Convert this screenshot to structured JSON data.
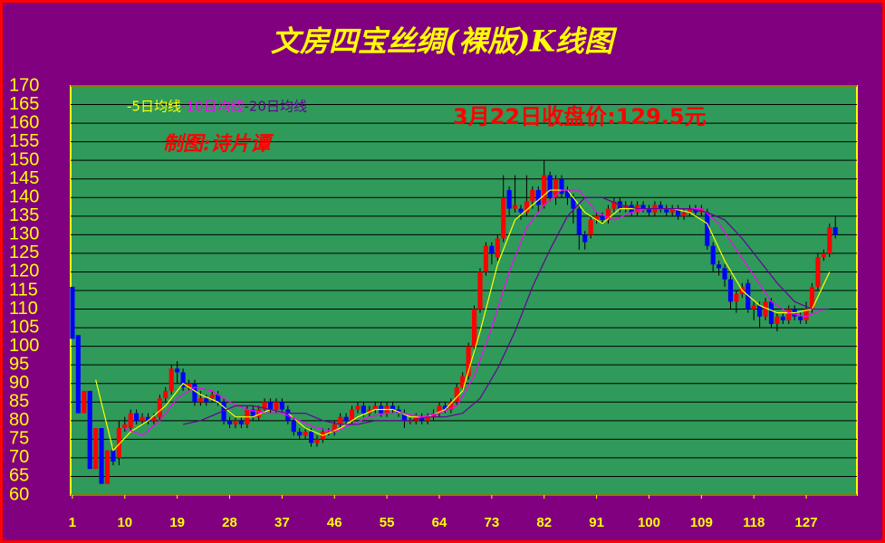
{
  "chart_data": {
    "type": "candlestick",
    "title": "文房四宝丝绸(裸版)K线图",
    "annotation": "3月22日收盘价:129.5元",
    "credit": "制图:诗片谭",
    "ylim": [
      60,
      170
    ],
    "yticks": [
      60,
      65,
      70,
      75,
      80,
      85,
      90,
      95,
      100,
      105,
      110,
      115,
      120,
      125,
      130,
      135,
      140,
      145,
      150,
      155,
      160,
      165,
      170
    ],
    "xlim": [
      0.7,
      135.7
    ],
    "xticks": [
      1,
      10,
      19,
      28,
      37,
      46,
      55,
      64,
      73,
      82,
      91,
      100,
      109,
      118,
      127
    ],
    "grid": true,
    "up_color": "#ff0000",
    "down_color": "#0000ff",
    "open": [
      116,
      103,
      82,
      88,
      67,
      78,
      63,
      72,
      70,
      78,
      78,
      82,
      80,
      81,
      80,
      81,
      86,
      88,
      94,
      93,
      89,
      90,
      85,
      86,
      86,
      87,
      85,
      80,
      79,
      80,
      79,
      83,
      81,
      83,
      85,
      83,
      85,
      83,
      80,
      77,
      76,
      77,
      74,
      75,
      77,
      77,
      79,
      81,
      80,
      83,
      84,
      82,
      83,
      84,
      82,
      84,
      83,
      82,
      80,
      80,
      81,
      80,
      81,
      82,
      84,
      83,
      85,
      89,
      92,
      100,
      110,
      120,
      127,
      124,
      129,
      142,
      137,
      137,
      136,
      139,
      142,
      138,
      146,
      140,
      145,
      142,
      140,
      137,
      130,
      130,
      134,
      135,
      134,
      137,
      139,
      137,
      138,
      136,
      138,
      137,
      136,
      138,
      137,
      136,
      137,
      135,
      136,
      137,
      136,
      136,
      127,
      122,
      121,
      118,
      112,
      114,
      117,
      110,
      111,
      108,
      112,
      106,
      108,
      107,
      110,
      108,
      107,
      110,
      116,
      124,
      125,
      132
    ],
    "high": [
      116,
      103,
      88,
      88,
      78,
      78,
      72,
      73,
      80,
      81,
      83,
      83,
      82,
      82,
      82,
      87,
      89,
      95,
      96,
      94,
      91,
      91,
      88,
      87,
      88,
      88,
      86,
      81,
      81,
      81,
      84,
      84,
      84,
      86,
      86,
      86,
      86,
      84,
      81,
      78,
      78,
      78,
      76,
      78,
      78,
      80,
      82,
      82,
      84,
      85,
      85,
      84,
      85,
      85,
      85,
      85,
      84,
      83,
      81,
      82,
      82,
      82,
      83,
      85,
      85,
      86,
      90,
      93,
      101,
      111,
      121,
      128,
      128,
      130,
      146,
      143,
      146,
      138,
      146,
      143,
      143,
      150,
      147,
      146,
      146,
      143,
      141,
      138,
      131,
      135,
      136,
      136,
      138,
      140,
      140,
      139,
      139,
      139,
      139,
      138,
      139,
      139,
      138,
      138,
      138,
      137,
      138,
      138,
      138,
      137,
      128,
      123,
      122,
      119,
      115,
      117,
      118,
      112,
      112,
      113,
      113,
      109,
      109,
      111,
      111,
      109,
      112,
      117,
      125,
      126,
      133,
      135
    ],
    "low": [
      102,
      82,
      82,
      67,
      67,
      63,
      63,
      68,
      68,
      77,
      77,
      79,
      79,
      79,
      79,
      80,
      85,
      87,
      90,
      88,
      88,
      84,
      84,
      84,
      85,
      84,
      79,
      78,
      78,
      78,
      78,
      80,
      80,
      82,
      82,
      82,
      82,
      79,
      76,
      75,
      75,
      73,
      73,
      74,
      76,
      76,
      78,
      79,
      79,
      82,
      81,
      81,
      82,
      81,
      81,
      82,
      81,
      78,
      79,
      79,
      79,
      79,
      80,
      81,
      82,
      82,
      84,
      88,
      91,
      99,
      109,
      119,
      122,
      123,
      128,
      135,
      136,
      134,
      135,
      137,
      136,
      137,
      139,
      138,
      140,
      138,
      133,
      126,
      126,
      129,
      133,
      133,
      133,
      136,
      136,
      136,
      135,
      135,
      136,
      135,
      135,
      136,
      135,
      135,
      134,
      134,
      135,
      135,
      135,
      126,
      120,
      119,
      116,
      110,
      109,
      113,
      109,
      107,
      105,
      107,
      105,
      104,
      106,
      106,
      107,
      106,
      106,
      109,
      115,
      123,
      124,
      129
    ],
    "close": [
      102,
      82,
      88,
      67,
      78,
      63,
      72,
      69,
      78,
      79,
      82,
      80,
      81,
      80,
      81,
      86,
      88,
      94,
      93,
      89,
      90,
      85,
      86,
      85,
      87,
      85,
      80,
      79,
      80,
      79,
      83,
      81,
      83,
      85,
      83,
      85,
      83,
      80,
      77,
      76,
      77,
      74,
      75,
      77,
      77,
      79,
      81,
      80,
      83,
      84,
      82,
      83,
      84,
      82,
      84,
      83,
      82,
      80,
      80,
      81,
      80,
      81,
      82,
      84,
      83,
      85,
      89,
      92,
      100,
      110,
      120,
      127,
      125,
      129,
      140,
      137,
      138,
      136,
      139,
      142,
      138,
      146,
      140,
      145,
      141,
      140,
      137,
      130,
      128,
      134,
      135,
      134,
      137,
      139,
      137,
      138,
      136,
      138,
      137,
      136,
      138,
      137,
      136,
      137,
      135,
      136,
      137,
      136,
      137,
      127,
      122,
      121,
      118,
      112,
      114,
      116,
      110,
      111,
      108,
      112,
      106,
      108,
      107,
      110,
      108,
      107,
      110,
      116,
      124,
      125,
      132,
      130
    ],
    "series": [
      {
        "name": "-5日均线",
        "color": "#ffff00",
        "x": [
          5,
          8,
          11,
          14,
          17,
          20,
          23,
          26,
          29,
          32,
          35,
          38,
          41,
          44,
          47,
          50,
          53,
          56,
          59,
          62,
          65,
          68,
          71,
          74,
          77,
          80,
          83,
          86,
          89,
          92,
          95,
          98,
          101,
          104,
          107,
          110,
          113,
          116,
          119,
          122,
          125,
          128,
          131
        ],
        "values": [
          91,
          72,
          77,
          80,
          84,
          90,
          87,
          85,
          81,
          81,
          83,
          82,
          78,
          76,
          78,
          81,
          83,
          83,
          81,
          81,
          83,
          88,
          104,
          122,
          134,
          138,
          142,
          142,
          136,
          133,
          137,
          137,
          137,
          137,
          136,
          133,
          123,
          115,
          111,
          109,
          109,
          110,
          120
        ]
      },
      {
        "name": "-10日均线",
        "color": "#ff00ff",
        "x": [
          10,
          13,
          16,
          19,
          22,
          25,
          28,
          31,
          34,
          37,
          40,
          43,
          46,
          49,
          52,
          55,
          58,
          61,
          64,
          67,
          70,
          73,
          76,
          79,
          82,
          85,
          88,
          91,
          94,
          97,
          100,
          103,
          106,
          109,
          112,
          115,
          118,
          121,
          124,
          127,
          130
        ],
        "values": [
          78,
          76,
          80,
          86,
          89,
          88,
          85,
          83,
          82,
          82,
          80,
          78,
          77,
          79,
          81,
          82,
          82,
          81,
          82,
          84,
          92,
          105,
          120,
          132,
          138,
          142,
          142,
          136,
          134,
          136,
          137,
          137,
          137,
          137,
          133,
          126,
          119,
          112,
          109,
          108,
          110
        ]
      },
      {
        "name": "-20日均线",
        "color": "#660099",
        "x": [
          20,
          23,
          26,
          29,
          32,
          35,
          38,
          41,
          44,
          47,
          50,
          53,
          56,
          59,
          62,
          65,
          68,
          71,
          74,
          77,
          80,
          83,
          86,
          89,
          92,
          95,
          98,
          101,
          104,
          107,
          110,
          113,
          116,
          119,
          122,
          125,
          128,
          131
        ],
        "values": [
          79,
          80,
          82,
          84,
          84,
          83,
          82,
          82,
          80,
          79,
          79,
          80,
          80,
          80,
          81,
          81,
          82,
          86,
          94,
          104,
          116,
          126,
          135,
          140,
          140,
          138,
          137,
          137,
          137,
          137,
          136,
          134,
          129,
          123,
          117,
          112,
          110,
          110
        ]
      }
    ]
  }
}
